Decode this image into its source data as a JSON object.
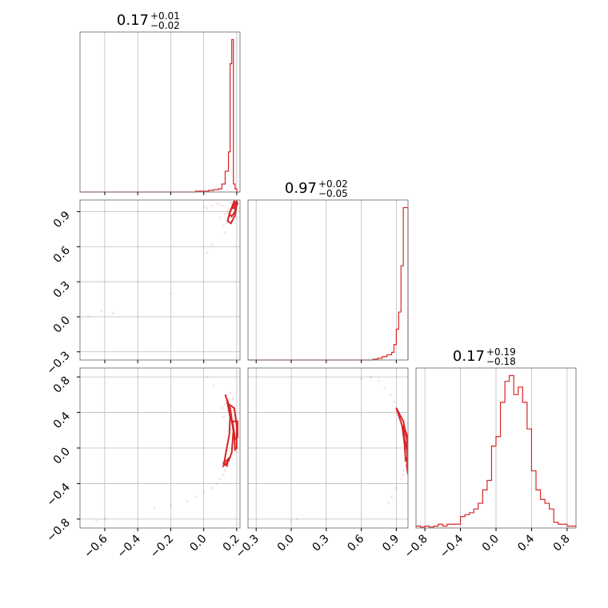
{
  "chart_data": {
    "type": "corner",
    "color": "#d62728",
    "parameters": [
      {
        "title_median": "0.17",
        "title_plus": "+0.01",
        "title_minus": "−0.02",
        "range": [
          -0.75,
          0.22
        ],
        "ticks": [
          -0.6,
          -0.4,
          -0.2,
          0.0,
          0.2
        ],
        "tick_labels": [
          "−0.6",
          "−0.4",
          "−0.2",
          "0.0",
          "0.2"
        ],
        "hist": {
          "edges": [
            -0.05,
            0.0,
            0.03,
            0.06,
            0.09,
            0.11,
            0.13,
            0.15,
            0.16,
            0.17,
            0.18,
            0.19,
            0.2,
            0.21,
            0.22
          ],
          "values": [
            0.005,
            0.005,
            0.01,
            0.015,
            0.02,
            0.05,
            0.13,
            0.25,
            0.8,
            0.95,
            0.05,
            0.02,
            0.0,
            0.0
          ]
        }
      },
      {
        "title_median": "0.97",
        "title_plus": "+0.02",
        "title_minus": "−0.05",
        "range": [
          -0.37,
          1.0
        ],
        "ticks": [
          -0.3,
          0.0,
          0.3,
          0.6,
          0.9
        ],
        "tick_labels": [
          "−0.3",
          "0.0",
          "0.3",
          "0.6",
          "0.9"
        ],
        "hist": {
          "edges": [
            0.7,
            0.74,
            0.78,
            0.82,
            0.86,
            0.88,
            0.9,
            0.92,
            0.94,
            0.96,
            0.98,
            1.0
          ],
          "values": [
            0.005,
            0.01,
            0.02,
            0.03,
            0.045,
            0.09,
            0.18,
            0.28,
            0.55,
            0.89,
            0.89
          ]
        }
      },
      {
        "title_median": "0.17",
        "title_plus": "+0.19",
        "title_minus": "−0.18",
        "range": [
          -0.9,
          0.9
        ],
        "ticks": [
          -0.8,
          -0.4,
          0.0,
          0.4,
          0.8
        ],
        "tick_labels": [
          "−0.8",
          "−0.4",
          "0.0",
          "0.4",
          "0.8"
        ],
        "hist": {
          "edges": [
            -0.9,
            -0.85,
            -0.8,
            -0.75,
            -0.7,
            -0.65,
            -0.6,
            -0.55,
            -0.5,
            -0.45,
            -0.4,
            -0.35,
            -0.3,
            -0.25,
            -0.2,
            -0.15,
            -0.1,
            -0.05,
            0.0,
            0.05,
            0.1,
            0.15,
            0.2,
            0.25,
            0.3,
            0.35,
            0.4,
            0.45,
            0.5,
            0.55,
            0.6,
            0.65,
            0.7,
            0.75,
            0.8,
            0.85,
            0.9
          ],
          "values": [
            0.01,
            0.005,
            0.01,
            0.005,
            0.01,
            0.02,
            0.01,
            0.02,
            0.02,
            0.02,
            0.06,
            0.07,
            0.08,
            0.1,
            0.13,
            0.2,
            0.25,
            0.43,
            0.48,
            0.66,
            0.77,
            0.8,
            0.7,
            0.74,
            0.66,
            0.52,
            0.3,
            0.2,
            0.15,
            0.13,
            0.1,
            0.03,
            0.02,
            0.02,
            0.01,
            0.01
          ]
        }
      }
    ],
    "scatter_pairs": [
      {
        "x": 0,
        "y": 1,
        "points": [
          [
            0.2,
            0.97
          ],
          [
            0.19,
            0.95
          ],
          [
            0.18,
            0.93
          ],
          [
            0.17,
            0.97
          ],
          [
            0.16,
            0.98
          ],
          [
            0.15,
            0.92
          ],
          [
            0.14,
            0.9
          ],
          [
            0.13,
            0.88
          ],
          [
            0.12,
            0.95
          ],
          [
            0.1,
            0.96
          ],
          [
            0.08,
            0.97
          ],
          [
            0.05,
            0.95
          ],
          [
            0.02,
            0.93
          ],
          [
            0.0,
            0.94
          ],
          [
            0.15,
            0.85
          ],
          [
            0.17,
            0.82
          ],
          [
            0.14,
            0.8
          ],
          [
            0.12,
            0.78
          ],
          [
            0.18,
            0.88
          ],
          [
            0.16,
            0.86
          ],
          [
            0.13,
            0.72
          ],
          [
            0.05,
            0.62
          ],
          [
            0.02,
            0.55
          ],
          [
            -0.2,
            0.2
          ],
          [
            -0.55,
            0.03
          ],
          [
            -0.62,
            0.05
          ],
          [
            -0.7,
            0.0
          ],
          [
            0.1,
            0.85
          ],
          [
            0.19,
            0.9
          ],
          [
            0.2,
            0.85
          ]
        ],
        "contours": [
          [
            [
              0.145,
              0.82
            ],
            [
              0.16,
              0.9
            ],
            [
              0.185,
              0.99
            ],
            [
              0.2,
              0.96
            ],
            [
              0.19,
              0.87
            ],
            [
              0.165,
              0.8
            ],
            [
              0.145,
              0.82
            ]
          ],
          [
            [
              0.155,
              0.88
            ],
            [
              0.175,
              0.95
            ],
            [
              0.195,
              0.97
            ],
            [
              0.19,
              0.9
            ],
            [
              0.17,
              0.86
            ],
            [
              0.155,
              0.88
            ]
          ],
          [
            [
              0.175,
              0.93
            ],
            [
              0.2,
              0.99
            ],
            [
              0.205,
              0.97
            ],
            [
              0.19,
              0.93
            ],
            [
              0.175,
              0.93
            ]
          ]
        ]
      },
      {
        "x": 0,
        "y": 2,
        "points": [
          [
            0.14,
            0.6
          ],
          [
            0.15,
            0.55
          ],
          [
            0.13,
            0.5
          ],
          [
            0.15,
            0.42
          ],
          [
            0.12,
            0.35
          ],
          [
            0.16,
            0.3
          ],
          [
            0.17,
            0.2
          ],
          [
            0.18,
            0.1
          ],
          [
            0.17,
            0.0
          ],
          [
            0.16,
            -0.1
          ],
          [
            0.15,
            -0.2
          ],
          [
            0.12,
            -0.3
          ],
          [
            0.1,
            -0.35
          ],
          [
            0.08,
            -0.4
          ],
          [
            0.05,
            -0.45
          ],
          [
            0.0,
            -0.5
          ],
          [
            -0.05,
            -0.55
          ],
          [
            -0.1,
            -0.6
          ],
          [
            -0.2,
            -0.65
          ],
          [
            -0.3,
            -0.68
          ],
          [
            -0.6,
            -0.8
          ],
          [
            -0.65,
            -0.82
          ],
          [
            0.13,
            -0.25
          ],
          [
            0.11,
            0.45
          ],
          [
            0.16,
            0.62
          ],
          [
            0.18,
            0.55
          ],
          [
            0.19,
            0.3
          ],
          [
            0.2,
            -0.05
          ],
          [
            0.06,
            0.7
          ],
          [
            0.02,
            0.8
          ]
        ],
        "contours": [
          [
            [
              0.13,
              0.6
            ],
            [
              0.16,
              0.45
            ],
            [
              0.18,
              0.2
            ],
            [
              0.17,
              -0.05
            ],
            [
              0.15,
              -0.15
            ],
            [
              0.12,
              -0.2
            ],
            [
              0.135,
              -0.05
            ],
            [
              0.155,
              0.15
            ],
            [
              0.16,
              0.35
            ],
            [
              0.14,
              0.55
            ],
            [
              0.13,
              0.6
            ]
          ],
          [
            [
              0.145,
              0.5
            ],
            [
              0.165,
              0.35
            ],
            [
              0.185,
              0.15
            ],
            [
              0.19,
              -0.02
            ],
            [
              0.2,
              0.0
            ],
            [
              0.2,
              0.25
            ],
            [
              0.185,
              0.45
            ],
            [
              0.145,
              0.5
            ]
          ],
          [
            [
              0.175,
              0.3
            ],
            [
              0.19,
              0.1
            ],
            [
              0.205,
              0.12
            ],
            [
              0.205,
              0.3
            ],
            [
              0.175,
              0.3
            ]
          ],
          [
            [
              0.12,
              -0.17
            ],
            [
              0.15,
              -0.12
            ],
            [
              0.14,
              -0.2
            ],
            [
              0.12,
              -0.17
            ]
          ]
        ]
      },
      {
        "x": 1,
        "y": 2,
        "points": [
          [
            0.75,
            0.75
          ],
          [
            0.8,
            0.68
          ],
          [
            0.85,
            0.6
          ],
          [
            0.88,
            0.52
          ],
          [
            0.9,
            0.45
          ],
          [
            0.93,
            0.35
          ],
          [
            0.95,
            0.25
          ],
          [
            0.97,
            0.15
          ],
          [
            0.98,
            0.05
          ],
          [
            0.98,
            -0.05
          ],
          [
            0.97,
            -0.15
          ],
          [
            0.96,
            -0.25
          ],
          [
            0.94,
            -0.35
          ],
          [
            0.9,
            -0.45
          ],
          [
            0.86,
            -0.55
          ],
          [
            0.83,
            -0.62
          ],
          [
            0.99,
            0.1
          ],
          [
            0.99,
            0.0
          ],
          [
            0.99,
            -0.1
          ],
          [
            0.97,
            0.3
          ],
          [
            0.6,
            0.78
          ],
          [
            0.68,
            0.8
          ],
          [
            0.05,
            -0.8
          ],
          [
            0.0,
            -0.82
          ],
          [
            0.92,
            0.4
          ],
          [
            0.96,
            -0.3
          ],
          [
            0.98,
            0.2
          ],
          [
            0.98,
            -0.2
          ]
        ],
        "contours": [
          [
            [
              0.9,
              0.45
            ],
            [
              0.96,
              0.3
            ],
            [
              0.99,
              0.1
            ],
            [
              0.995,
              -0.1
            ],
            [
              0.98,
              -0.15
            ],
            [
              0.97,
              0.05
            ],
            [
              0.95,
              0.25
            ],
            [
              0.9,
              0.45
            ]
          ],
          [
            [
              0.96,
              0.25
            ],
            [
              0.99,
              0.15
            ],
            [
              1.0,
              0.0
            ],
            [
              0.995,
              -0.05
            ],
            [
              0.97,
              0.1
            ],
            [
              0.96,
              0.25
            ]
          ],
          [
            [
              0.99,
              -0.2
            ],
            [
              1.0,
              -0.05
            ],
            [
              1.0,
              -0.3
            ],
            [
              0.99,
              -0.2
            ]
          ]
        ]
      }
    ]
  }
}
